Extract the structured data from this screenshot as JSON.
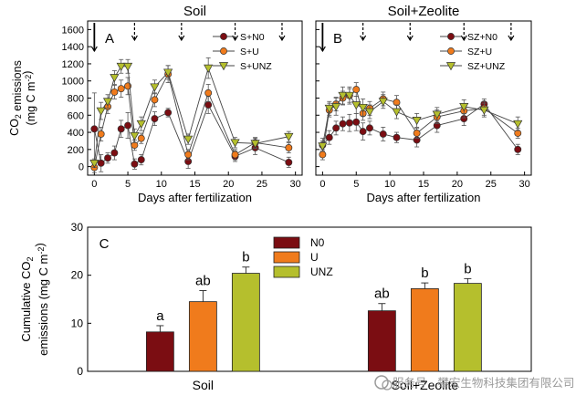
{
  "chart_data": [
    {
      "type": "line",
      "title": "Soil",
      "panel_label": "A",
      "xlabel": "Days after fertilization",
      "ylabel_lines": [
        "CO2 emissions",
        "(mg C m-2)"
      ],
      "xlim": [
        -1,
        31
      ],
      "ylim": [
        -100,
        1700
      ],
      "xticks": [
        "0",
        "5",
        "10",
        "15",
        "20",
        "25",
        "30"
      ],
      "yticks": [
        "0",
        "200",
        "400",
        "600",
        "800",
        "1000",
        "1200",
        "1400",
        "1600"
      ],
      "fertilization_days": [
        0,
        6,
        13,
        21,
        28
      ],
      "legend": [
        "S+N0",
        "S+U",
        "S+UNZ"
      ],
      "series": [
        {
          "name": "S+N0",
          "color": "#7b0d12",
          "marker": "circle",
          "x": [
            0,
            1,
            2,
            3,
            4,
            5,
            6,
            7,
            9,
            11,
            14,
            17,
            21,
            24,
            29
          ],
          "y": [
            440,
            40,
            100,
            160,
            440,
            480,
            30,
            80,
            560,
            630,
            60,
            720,
            120,
            220,
            50
          ],
          "err": [
            420,
            100,
            60,
            80,
            100,
            150,
            60,
            60,
            80,
            50,
            80,
            100,
            60,
            80,
            60
          ]
        },
        {
          "name": "S+U",
          "color": "#f07b1c",
          "marker": "circle",
          "x": [
            0,
            1,
            2,
            3,
            4,
            5,
            6,
            7,
            9,
            11,
            14,
            17,
            21,
            24,
            29
          ],
          "y": [
            -10,
            380,
            700,
            870,
            910,
            940,
            250,
            330,
            780,
            1080,
            140,
            860,
            140,
            280,
            220
          ],
          "err": [
            60,
            80,
            80,
            80,
            100,
            100,
            60,
            60,
            80,
            100,
            60,
            100,
            60,
            60,
            60
          ]
        },
        {
          "name": "S+UNZ",
          "color": "#b5bf2d",
          "marker": "triangle",
          "x": [
            0,
            1,
            2,
            3,
            4,
            5,
            6,
            7,
            9,
            11,
            14,
            17,
            21,
            24,
            29
          ],
          "y": [
            40,
            650,
            760,
            1040,
            1170,
            1170,
            360,
            500,
            930,
            1100,
            320,
            1150,
            280,
            270,
            350
          ],
          "err": [
            50,
            100,
            80,
            80,
            80,
            80,
            80,
            80,
            80,
            80,
            60,
            120,
            60,
            60,
            60
          ]
        }
      ]
    },
    {
      "type": "line",
      "title": "Soil+Zeolite",
      "panel_label": "B",
      "xlabel": "Days after fertilization",
      "xlim": [
        -1,
        31
      ],
      "ylim": [
        -100,
        1700
      ],
      "xticks": [
        "0",
        "5",
        "10",
        "15",
        "20",
        "25",
        "30"
      ],
      "fertilization_days": [
        0,
        6,
        13,
        21,
        28
      ],
      "legend": [
        "SZ+N0",
        "SZ+U",
        "SZ+UNZ"
      ],
      "series": [
        {
          "name": "SZ+N0",
          "color": "#7b0d12",
          "marker": "circle",
          "x": [
            0,
            1,
            2,
            3,
            4,
            5,
            6,
            7,
            9,
            11,
            14,
            17,
            21,
            24,
            29
          ],
          "y": [
            250,
            340,
            450,
            500,
            510,
            520,
            410,
            450,
            380,
            340,
            310,
            480,
            560,
            730,
            200
          ],
          "err": [
            80,
            80,
            80,
            80,
            100,
            100,
            100,
            80,
            80,
            60,
            80,
            80,
            80,
            60,
            60
          ]
        },
        {
          "name": "SZ+U",
          "color": "#f07b1c",
          "marker": "circle",
          "x": [
            0,
            1,
            2,
            3,
            4,
            5,
            6,
            7,
            9,
            11,
            14,
            17,
            21,
            24,
            29
          ],
          "y": [
            140,
            660,
            730,
            800,
            830,
            900,
            620,
            680,
            790,
            750,
            390,
            580,
            650,
            680,
            390
          ],
          "err": [
            60,
            80,
            80,
            80,
            80,
            80,
            80,
            80,
            80,
            80,
            60,
            80,
            80,
            80,
            60
          ]
        },
        {
          "name": "SZ+UNZ",
          "color": "#b5bf2d",
          "marker": "triangle",
          "x": [
            0,
            1,
            2,
            3,
            4,
            5,
            6,
            7,
            9,
            11,
            14,
            17,
            21,
            24,
            29
          ],
          "y": [
            240,
            680,
            700,
            830,
            830,
            720,
            690,
            640,
            760,
            640,
            540,
            610,
            700,
            660,
            500
          ],
          "err": [
            60,
            80,
            100,
            100,
            100,
            100,
            100,
            80,
            80,
            80,
            80,
            80,
            80,
            80,
            80
          ]
        }
      ]
    },
    {
      "type": "bar",
      "panel_label": "C",
      "ylabel_lines": [
        "Cumulative CO2",
        "emissions (mg C m-2)"
      ],
      "ylim": [
        0,
        30
      ],
      "yticks": [
        "0",
        "10",
        "20",
        "30"
      ],
      "categories": [
        "Soil",
        "Soil+Zeolite"
      ],
      "legend": [
        "N0",
        "U",
        "UNZ"
      ],
      "series": [
        {
          "name": "N0",
          "color": "#7b0d12",
          "values": [
            8.2,
            12.6
          ],
          "err": [
            1.3,
            1.5
          ],
          "letters": [
            "a",
            "ab"
          ]
        },
        {
          "name": "U",
          "color": "#f07b1c",
          "values": [
            14.5,
            17.2
          ],
          "err": [
            2.3,
            1.2
          ],
          "letters": [
            "ab",
            "b"
          ]
        },
        {
          "name": "UNZ",
          "color": "#b5bf2d",
          "values": [
            20.4,
            18.3
          ],
          "err": [
            1.3,
            1.0
          ],
          "letters": [
            "b",
            "b"
          ]
        }
      ]
    }
  ],
  "watermark": "服务号 · 攀宏生物科技集团有限公司",
  "colors": {
    "axis": "#000000",
    "watermark": "#9a9a9a"
  }
}
